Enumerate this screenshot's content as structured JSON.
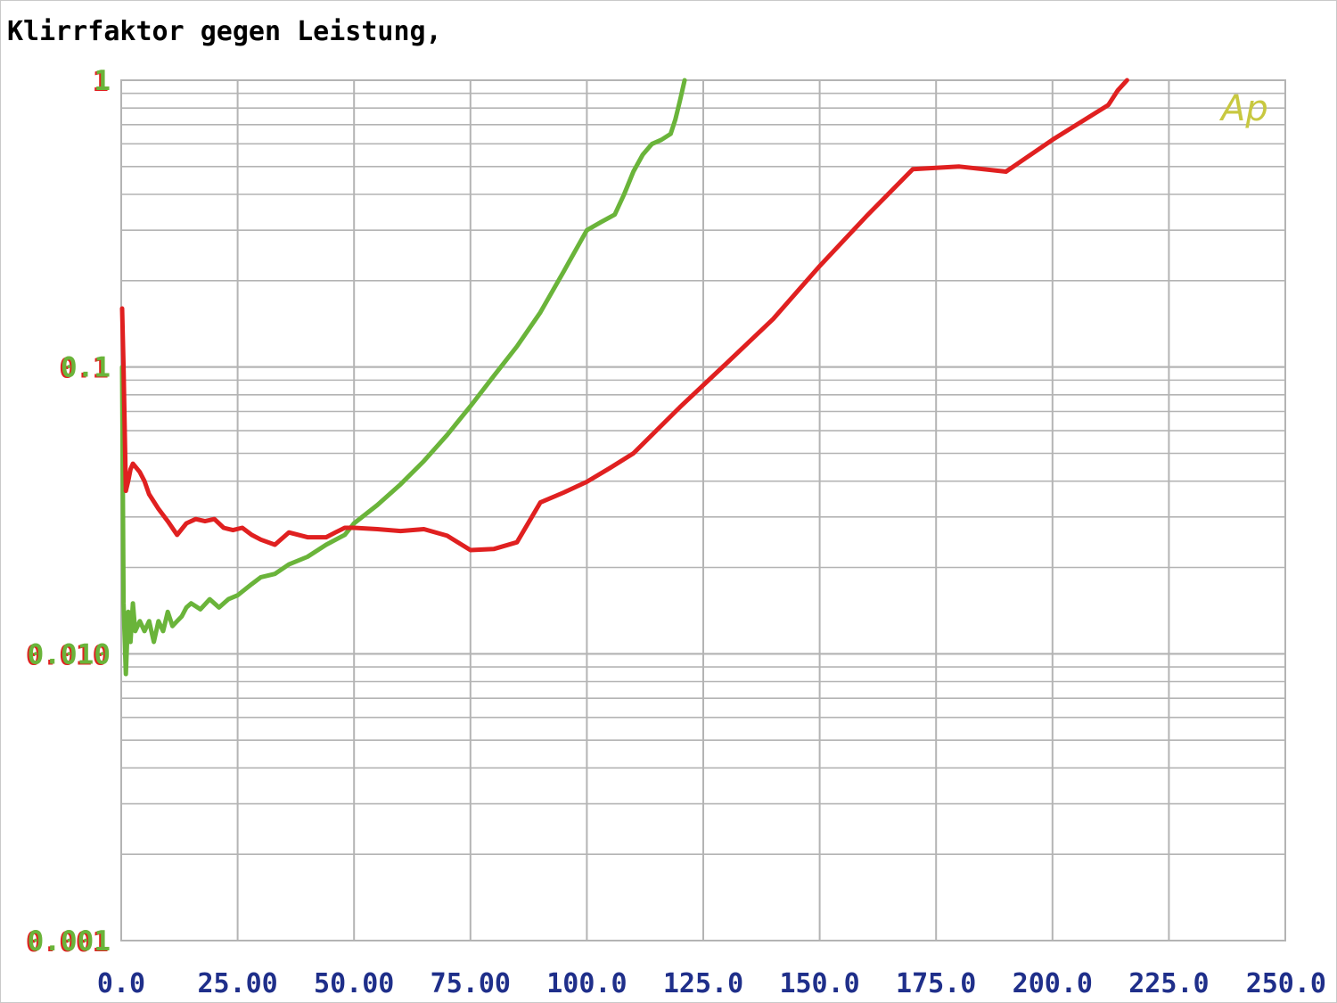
{
  "title": "Klirrfaktor gegen Leistung,",
  "logo": "Ap",
  "chart_data": {
    "type": "line",
    "title": "Klirrfaktor gegen Leistung,",
    "xlabel": "",
    "ylabel": "",
    "xlim": [
      0,
      250
    ],
    "ylim": [
      0.001,
      1
    ],
    "y_scale": "log",
    "grid": true,
    "x_ticks": [
      "0.0",
      "25.00",
      "50.00",
      "75.00",
      "100.0",
      "125.0",
      "150.0",
      "175.0",
      "200.0",
      "225.0",
      "250.0"
    ],
    "x_tick_values": [
      0,
      25,
      50,
      75,
      100,
      125,
      150,
      175,
      200,
      225,
      250
    ],
    "y_ticks": [
      "1",
      "0.1",
      "0.010",
      "0.001"
    ],
    "y_tick_values": [
      1,
      0.1,
      0.01,
      0.001
    ],
    "colors": {
      "green": "#6ab43a",
      "red": "#e02020",
      "grid": "#b4b4b4",
      "axis_text": "#1f2f8a",
      "logo": "#c8c840"
    },
    "series": [
      {
        "color": "#6ab43a",
        "x": [
          0.2,
          0.5,
          1,
          1.5,
          2,
          2.5,
          3,
          4,
          5,
          6,
          7,
          8,
          9,
          10,
          11,
          12,
          13,
          14,
          15,
          17,
          19,
          21,
          23,
          25,
          28,
          30,
          33,
          36,
          40,
          44,
          48,
          50,
          55,
          60,
          65,
          70,
          75,
          80,
          85,
          90,
          95,
          100,
          103,
          106,
          108,
          110,
          112,
          114,
          116,
          118,
          119,
          120,
          121
        ],
        "y": [
          0.1,
          0.015,
          0.0085,
          0.014,
          0.011,
          0.015,
          0.012,
          0.013,
          0.012,
          0.013,
          0.011,
          0.013,
          0.012,
          0.014,
          0.0125,
          0.013,
          0.0135,
          0.0145,
          0.015,
          0.0143,
          0.0155,
          0.0145,
          0.0155,
          0.016,
          0.0175,
          0.0185,
          0.019,
          0.0205,
          0.0218,
          0.024,
          0.026,
          0.0285,
          0.033,
          0.039,
          0.047,
          0.058,
          0.073,
          0.093,
          0.118,
          0.155,
          0.215,
          0.3,
          0.32,
          0.34,
          0.4,
          0.48,
          0.55,
          0.6,
          0.62,
          0.65,
          0.73,
          0.85,
          1.0
        ]
      },
      {
        "color": "#e02020",
        "x": [
          0.2,
          0.5,
          1,
          1.5,
          2,
          2.5,
          3,
          4,
          5,
          6,
          8,
          10,
          12,
          14,
          16,
          18,
          20,
          22,
          24,
          26,
          28,
          30,
          33,
          36,
          40,
          44,
          46,
          48,
          50,
          55,
          60,
          65,
          70,
          75,
          80,
          85,
          90,
          95,
          100,
          105,
          110,
          120,
          130,
          140,
          150,
          160,
          170,
          180,
          190,
          200,
          212,
          214,
          216
        ],
        "y": [
          0.16,
          0.1,
          0.037,
          0.04,
          0.044,
          0.046,
          0.045,
          0.043,
          0.04,
          0.036,
          0.032,
          0.029,
          0.026,
          0.0285,
          0.0295,
          0.029,
          0.0295,
          0.0275,
          0.027,
          0.0275,
          0.026,
          0.025,
          0.024,
          0.0265,
          0.0255,
          0.0255,
          0.0265,
          0.0275,
          0.0275,
          0.0272,
          0.0268,
          0.0272,
          0.0258,
          0.023,
          0.0232,
          0.0245,
          0.0337,
          0.0365,
          0.0398,
          0.0445,
          0.05,
          0.0725,
          0.103,
          0.147,
          0.225,
          0.335,
          0.49,
          0.5,
          0.48,
          0.62,
          0.82,
          0.92,
          1.0
        ]
      }
    ]
  }
}
